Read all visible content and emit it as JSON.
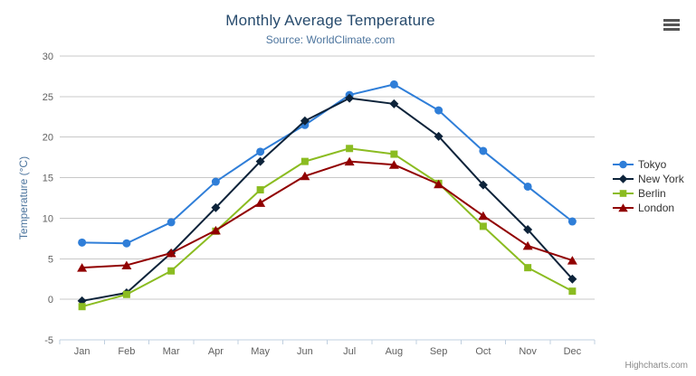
{
  "icons": {
    "context_menu": "hamburger-icon"
  },
  "chart_data": {
    "type": "line",
    "title": "Monthly Average Temperature",
    "subtitle": "Source: WorldClimate.com",
    "xlabel": "",
    "ylabel": "Temperature (°C)",
    "categories": [
      "Jan",
      "Feb",
      "Mar",
      "Apr",
      "May",
      "Jun",
      "Jul",
      "Aug",
      "Sep",
      "Oct",
      "Nov",
      "Dec"
    ],
    "ylim": [
      -5,
      30
    ],
    "ytick_interval": 5,
    "ytick_labels": [
      "-5",
      "0",
      "5",
      "10",
      "15",
      "20",
      "25",
      "30"
    ],
    "grid": "horizontal",
    "legend_position": "right",
    "series": [
      {
        "name": "Tokyo",
        "color": "#2f7ed8",
        "marker": "circle",
        "values": [
          7.0,
          6.9,
          9.5,
          14.5,
          18.2,
          21.5,
          25.2,
          26.5,
          23.3,
          18.3,
          13.9,
          9.6
        ]
      },
      {
        "name": "New York",
        "color": "#0d233a",
        "marker": "diamond",
        "values": [
          -0.2,
          0.8,
          5.7,
          11.3,
          17.0,
          22.0,
          24.8,
          24.1,
          20.1,
          14.1,
          8.6,
          2.5
        ]
      },
      {
        "name": "Berlin",
        "color": "#8bbc21",
        "marker": "square",
        "values": [
          -0.9,
          0.6,
          3.5,
          8.4,
          13.5,
          17.0,
          18.6,
          17.9,
          14.3,
          9.0,
          3.9,
          1.0
        ]
      },
      {
        "name": "London",
        "color": "#910000",
        "marker": "triangle",
        "values": [
          3.9,
          4.2,
          5.7,
          8.5,
          11.9,
          15.2,
          17.0,
          16.6,
          14.2,
          10.3,
          6.6,
          4.8
        ]
      }
    ],
    "credits": "Highcharts.com"
  }
}
